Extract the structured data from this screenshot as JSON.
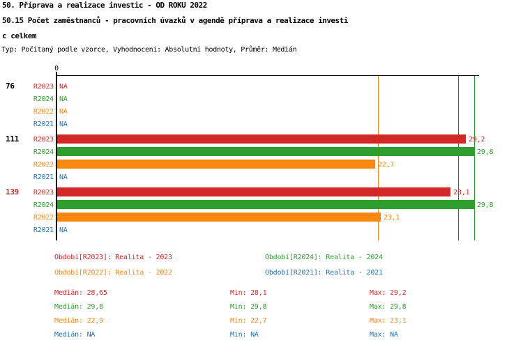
{
  "header": {
    "line1": "50. Příprava a realizace investic - OD ROKU 2022",
    "line2": "50.15 Počet zaměstnanců - pracovních úvazků v agendě příprava a realizace investi",
    "line3": "c celkem",
    "meta": "Typ: Počítaný podle vzorce, Vyhodnocení: Absolutní hodnoty, Průměr: Medián"
  },
  "colors": {
    "R2023": "#d22828",
    "R2024": "#2e9e2e",
    "R2022": "#fc870f",
    "R2021": "#2371b0",
    "axis": "#000000",
    "text": "#000000",
    "highlight_group_label": "#d22828"
  },
  "chart_data": {
    "type": "bar",
    "orientation": "horizontal",
    "title": "50.15 Počet zaměstnanců - pracovních úvazků v agendě příprava a realizace investic celkem",
    "x_axis": {
      "origin_label": "0",
      "min": 0,
      "max": 30.2,
      "grid": false
    },
    "legend_position": "bottom",
    "na_label": "NA",
    "series": [
      {
        "id": "R2023",
        "name": "Realita - 2023"
      },
      {
        "id": "R2024",
        "name": "Realita - 2024"
      },
      {
        "id": "R2022",
        "name": "Realita - 2022"
      },
      {
        "id": "R2021",
        "name": "Realita - 2021"
      }
    ],
    "groups": [
      {
        "label": "76",
        "highlighted": false,
        "rows": [
          {
            "series": "R2023",
            "value": null,
            "display": "NA"
          },
          {
            "series": "R2024",
            "value": null,
            "display": "NA"
          },
          {
            "series": "R2022",
            "value": null,
            "display": "NA"
          },
          {
            "series": "R2021",
            "value": null,
            "display": "NA"
          }
        ]
      },
      {
        "label": "111",
        "highlighted": false,
        "rows": [
          {
            "series": "R2023",
            "value": 29.2,
            "display": "29,2"
          },
          {
            "series": "R2024",
            "value": 29.8,
            "display": "29,8"
          },
          {
            "series": "R2022",
            "value": 22.7,
            "display": "22,7"
          },
          {
            "series": "R2021",
            "value": null,
            "display": "NA"
          }
        ]
      },
      {
        "label": "139",
        "highlighted": true,
        "rows": [
          {
            "series": "R2023",
            "value": 28.1,
            "display": "28,1"
          },
          {
            "series": "R2024",
            "value": 29.8,
            "display": "29,8"
          },
          {
            "series": "R2022",
            "value": 23.1,
            "display": "23,1"
          },
          {
            "series": "R2021",
            "value": null,
            "display": "NA"
          }
        ]
      }
    ],
    "median_lines": [
      {
        "series": "R2023",
        "value": 28.65
      },
      {
        "series": "R2024",
        "value": 29.8
      },
      {
        "series": "R2022",
        "value": 22.9
      }
    ]
  },
  "legend": {
    "items": [
      {
        "series": "R2023",
        "text": "Období[R2023]: Realita - 2023",
        "col": 0,
        "row": 0
      },
      {
        "series": "R2024",
        "text": "Období[R2024]: Realita - 2024",
        "col": 1,
        "row": 0
      },
      {
        "series": "R2022",
        "text": "Období[R2022]: Realita - 2022",
        "col": 0,
        "row": 1
      },
      {
        "series": "R2021",
        "text": "Období[R2021]: Realita - 2021",
        "col": 1,
        "row": 1
      }
    ]
  },
  "stats": {
    "rows": [
      {
        "series": "R2023",
        "median": "Medián: 28,65",
        "min": "Min: 28,1",
        "max": "Max: 29,2"
      },
      {
        "series": "R2024",
        "median": "Medián: 29,8",
        "min": "Min: 29,8",
        "max": "Max: 29,8"
      },
      {
        "series": "R2022",
        "median": "Medián: 22,9",
        "min": "Min: 22,7",
        "max": "Max: 23,1"
      },
      {
        "series": "R2021",
        "median": "Medián: NA",
        "min": "Min: NA",
        "max": "Max: NA"
      }
    ]
  }
}
